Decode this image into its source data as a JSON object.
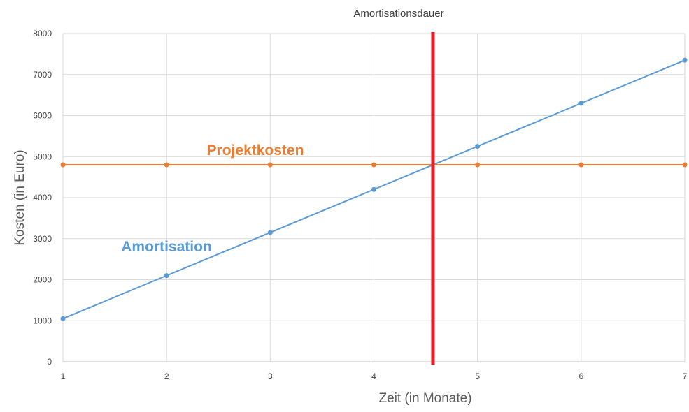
{
  "chart_data": {
    "type": "line",
    "title": "Amortisationsdauer",
    "xlabel": "Zeit (in Monate)",
    "ylabel": "Kosten (in Euro)",
    "x": [
      1,
      2,
      3,
      4,
      5,
      6,
      7
    ],
    "x_ticks": [
      "1",
      "2",
      "3",
      "4",
      "5",
      "6",
      "7"
    ],
    "y_ticks": [
      "0",
      "1000",
      "2000",
      "3000",
      "4000",
      "5000",
      "6000",
      "7000",
      "8000"
    ],
    "xlim": [
      1,
      7
    ],
    "ylim": [
      0,
      8000
    ],
    "grid": true,
    "series": [
      {
        "name": "Amortisation",
        "values": [
          1050,
          2100,
          3150,
          4200,
          5250,
          6300,
          7350
        ],
        "color": "#5b9bd5"
      },
      {
        "name": "Projektkosten",
        "values": [
          4800,
          4800,
          4800,
          4800,
          4800,
          4800,
          4800
        ],
        "color": "#ed7d31"
      }
    ],
    "reference_line": {
      "x": 4.57,
      "color": "#e3212a"
    }
  }
}
